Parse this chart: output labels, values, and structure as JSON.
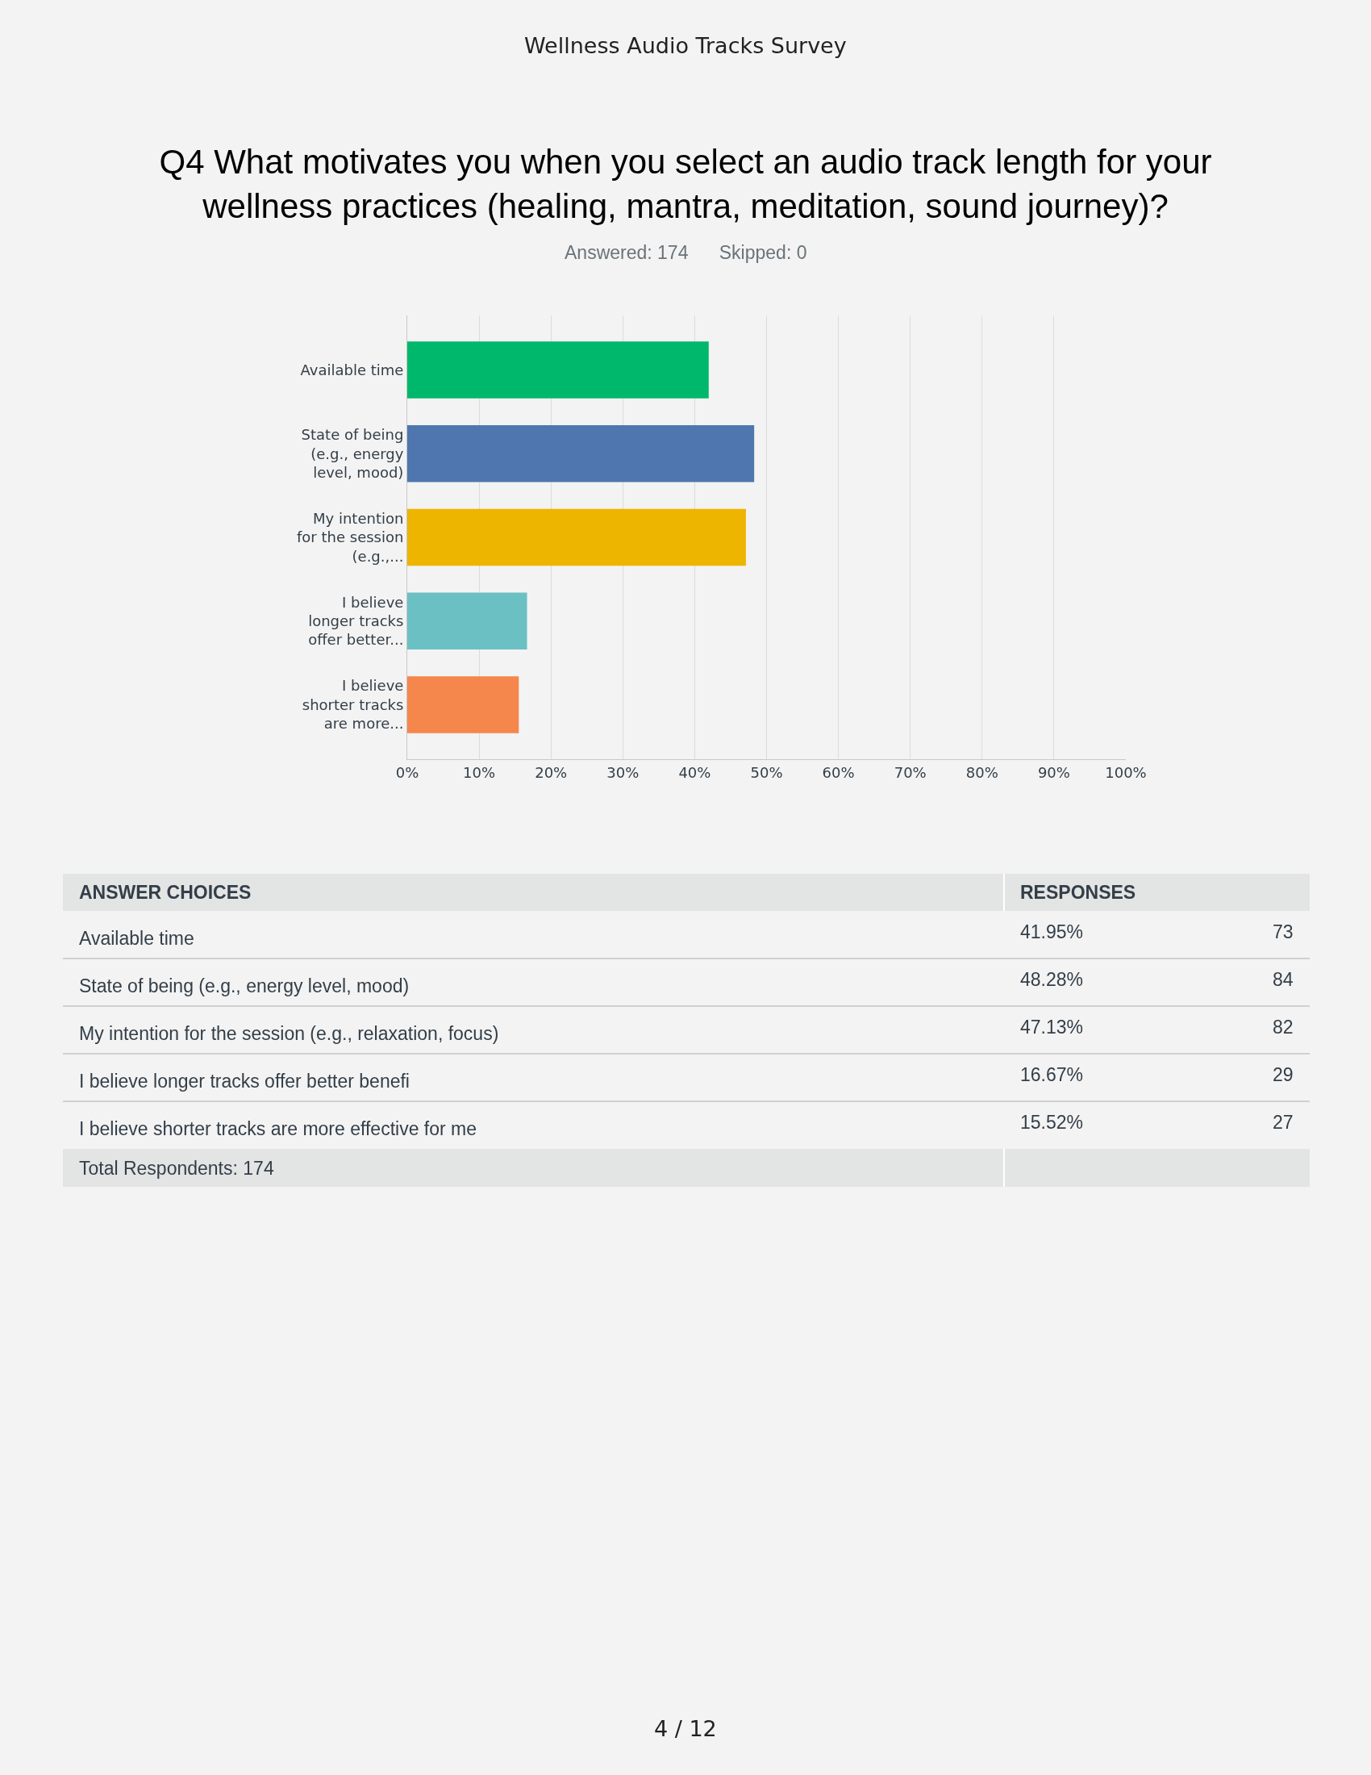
{
  "chart_data": [
    {
      "type": "bar",
      "orientation": "horizontal",
      "title": "Q4 What motivates you when you select an audio track length for your wellness practices (healing, mantra, meditation, sound journey)?",
      "subtitle": "Answered: 174    Skipped: 0",
      "categories": [
        "Available time",
        "State of being (e.g., energy level, mood)",
        "My intention for the session (e.g.,...",
        "I believe longer tracks offer better...",
        "I believe shorter tracks are more..."
      ],
      "values": [
        41.95,
        48.28,
        47.13,
        16.67,
        15.52
      ],
      "colors": [
        "#00b86b",
        "#4f76ae",
        "#edb500",
        "#6bc0c4",
        "#f5874c"
      ],
      "xlim": [
        0,
        100
      ],
      "xticks": [
        {
          "value": 0,
          "label": "0%"
        },
        {
          "value": 10,
          "label": "10%"
        },
        {
          "value": 20,
          "label": "20%"
        },
        {
          "value": 30,
          "label": "30%"
        },
        {
          "value": 40,
          "label": "40%"
        },
        {
          "value": 50,
          "label": "50%"
        },
        {
          "value": 60,
          "label": "60%"
        },
        {
          "value": 70,
          "label": "70%"
        },
        {
          "value": 80,
          "label": "80%"
        },
        {
          "value": 90,
          "label": "90%"
        },
        {
          "value": 100,
          "label": "100%"
        }
      ],
      "grid": "x",
      "annotations": [
        "Wellness Audio Tracks Survey",
        "4 / 12"
      ]
    },
    {
      "type": "other",
      "categories": [
        "Available time",
        "State of being (e.g., energy level, mood)",
        "My intention for the session (e.g., relaxation, focus)",
        "I believe longer tracks offer better benefi",
        "I believe shorter tracks are more effective for me"
      ],
      "series": [
        {
          "values": [
            41.95,
            48.28,
            47.13,
            16.67,
            15.52
          ],
          "value_labels": [
            "41.95%",
            "48.28%",
            "47.13%",
            "16.67%",
            "15.52%"
          ]
        },
        {
          "values": [
            73,
            84,
            82,
            29,
            27
          ],
          "data_labels": true
        }
      ],
      "annotations": [
        "ANSWER CHOICES",
        "RESPONSES",
        "Total Respondents: 174"
      ]
    }
  ]
}
